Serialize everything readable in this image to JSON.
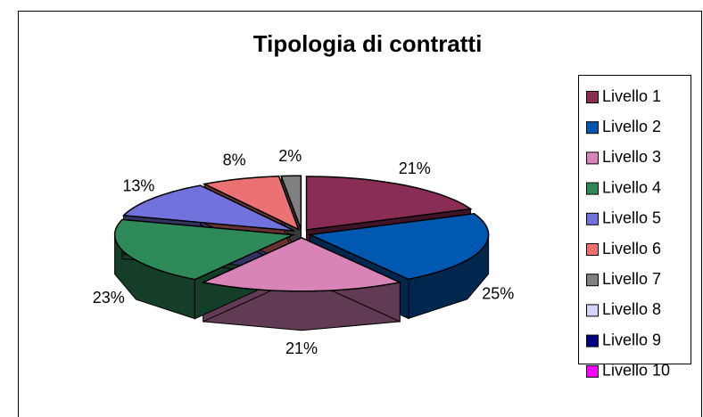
{
  "chart_data": {
    "type": "pie3d",
    "title": "Tipologia di contratti",
    "categories": [
      "Livello 1",
      "Livello 2",
      "Livello 3",
      "Livello 4",
      "Livello 5",
      "Livello 6",
      "Livello 7",
      "Livello 8",
      "Livello 9",
      "Livello 10"
    ],
    "values": [
      21,
      25,
      21,
      23,
      13,
      8,
      2,
      0,
      0,
      0
    ],
    "value_labels": [
      "21%",
      "25%",
      "21%",
      "23%",
      "13%",
      "8%",
      "2%",
      null,
      null,
      null
    ],
    "colors": [
      "#8a2d55",
      "#0058b0",
      "#d884b8",
      "#2e8a58",
      "#7272dc",
      "#ea7272",
      "#808080",
      "#d4d4fa",
      "#000080",
      "#ff00ff"
    ],
    "legend": "right"
  }
}
